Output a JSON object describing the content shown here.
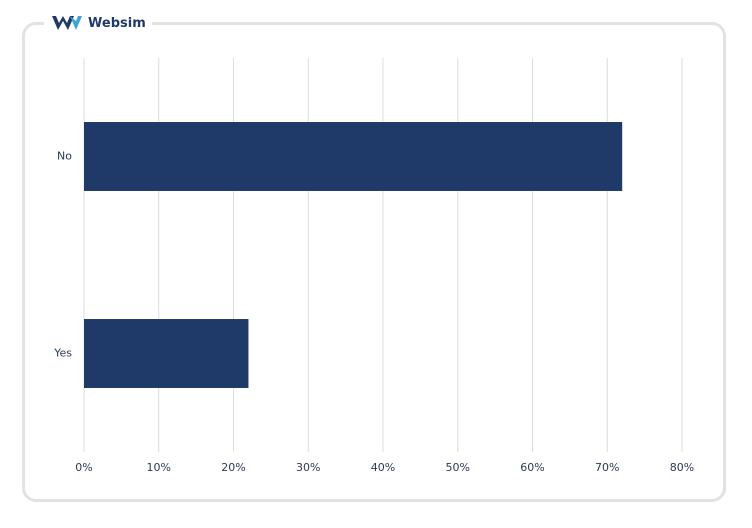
{
  "brand": "Websim",
  "chart_data": {
    "type": "hbar",
    "categories": [
      "No",
      "Yes"
    ],
    "values": [
      72,
      22
    ],
    "color": "#1f3a68",
    "xlim": [
      0,
      80
    ],
    "xticks": [
      {
        "value": 0,
        "label": "0%"
      },
      {
        "value": 10,
        "label": "10%"
      },
      {
        "value": 20,
        "label": "20%"
      },
      {
        "value": 30,
        "label": "30%"
      },
      {
        "value": 40,
        "label": "40%"
      },
      {
        "value": 50,
        "label": "50%"
      },
      {
        "value": 60,
        "label": "60%"
      },
      {
        "value": 70,
        "label": "70%"
      },
      {
        "value": 80,
        "label": "80%"
      }
    ],
    "grid": true
  }
}
